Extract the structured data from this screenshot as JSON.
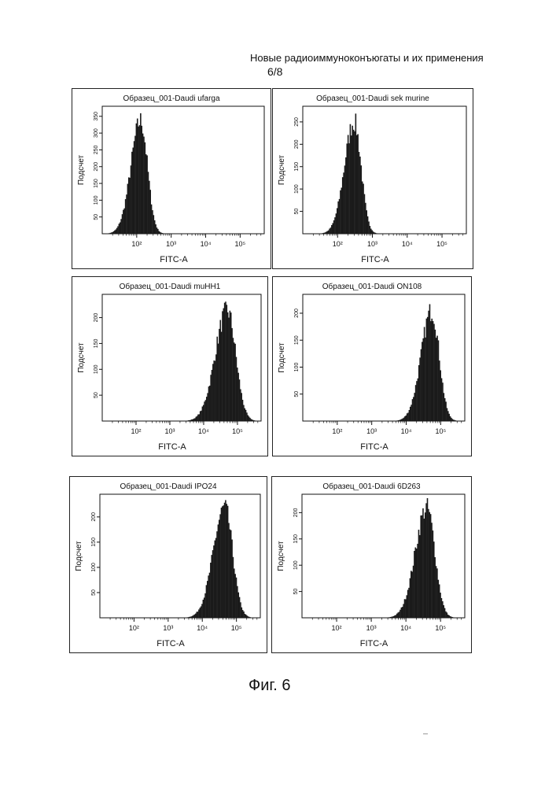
{
  "header": {
    "title": "Новые радиоиммуноконъюгаты и их применения",
    "page_number": "6/8"
  },
  "figure_caption": "Фиг. 6",
  "colors": {
    "ink": "#111111",
    "histogram_fill": "#1a1a1a",
    "background": "#ffffff"
  },
  "chart_data": [
    {
      "type": "histogram",
      "title": "Образец_001-Daudi ufarga",
      "xlabel": "FITC-A",
      "ylabel": "Подсчет",
      "x_scale": "log",
      "xlim": [
        10,
        500000
      ],
      "x_ticks": [
        100,
        1000,
        10000,
        100000
      ],
      "x_tick_labels": [
        "10²",
        "10³",
        "10⁴",
        "10⁵"
      ],
      "y_ticks": [
        50,
        100,
        150,
        200,
        250,
        300,
        350
      ],
      "ylim": [
        0,
        380
      ],
      "peak_x": 130,
      "peak_count": 370,
      "width_decades": 0.22
    },
    {
      "type": "histogram",
      "title": "Образец_001-Daudi sek murine",
      "xlabel": "FITC-A",
      "ylabel": "Подсчет",
      "x_scale": "log",
      "xlim": [
        10,
        500000
      ],
      "x_ticks": [
        100,
        1000,
        10000,
        100000
      ],
      "x_tick_labels": [
        "10²",
        "10³",
        "10⁴",
        "10⁵"
      ],
      "y_ticks": [
        50,
        100,
        150,
        200,
        250
      ],
      "ylim": [
        0,
        285
      ],
      "peak_x": 300,
      "peak_count": 275,
      "width_decades": 0.22
    },
    {
      "type": "histogram",
      "title": "Образец_001-Daudi muHH1",
      "xlabel": "FITC-A",
      "ylabel": "Подсчет",
      "x_scale": "log",
      "xlim": [
        10,
        500000
      ],
      "x_ticks": [
        100,
        1000,
        10000,
        100000
      ],
      "x_tick_labels": [
        "10²",
        "10³",
        "10⁴",
        "10⁵"
      ],
      "y_ticks": [
        50,
        100,
        150,
        200
      ],
      "ylim": [
        0,
        245
      ],
      "peak_x": 50000,
      "peak_count": 235,
      "width_decades": 0.28
    },
    {
      "type": "histogram",
      "title": "Образец_001-Daudi ON108",
      "xlabel": "FITC-A",
      "ylabel": "Подсчет",
      "x_scale": "log",
      "xlim": [
        10,
        500000
      ],
      "x_ticks": [
        100,
        1000,
        10000,
        100000
      ],
      "x_tick_labels": [
        "10²",
        "10³",
        "10⁴",
        "10⁵"
      ],
      "y_ticks": [
        50,
        100,
        150,
        200
      ],
      "ylim": [
        0,
        235
      ],
      "peak_x": 55000,
      "peak_count": 225,
      "width_decades": 0.24
    },
    {
      "type": "histogram",
      "title": "Образец_001-Daudi IPO24",
      "xlabel": "FITC-A",
      "ylabel": "Подсчет",
      "x_scale": "log",
      "xlim": [
        10,
        500000
      ],
      "x_ticks": [
        100,
        1000,
        10000,
        100000
      ],
      "x_tick_labels": [
        "10²",
        "10³",
        "10⁴",
        "10⁵"
      ],
      "y_ticks": [
        50,
        100,
        150,
        200
      ],
      "ylim": [
        0,
        245
      ],
      "peak_x": 45000,
      "peak_count": 240,
      "width_decades": 0.26
    },
    {
      "type": "histogram",
      "title": "Образец_001-Daudi 6D263",
      "xlabel": "FITC-A",
      "ylabel": "Подсчет",
      "x_scale": "log",
      "xlim": [
        10,
        500000
      ],
      "x_ticks": [
        100,
        1000,
        10000,
        100000
      ],
      "x_tick_labels": [
        "10²",
        "10³",
        "10⁴",
        "10⁵"
      ],
      "y_ticks": [
        50,
        100,
        150,
        200
      ],
      "ylim": [
        0,
        235
      ],
      "peak_x": 40000,
      "peak_count": 230,
      "width_decades": 0.26
    }
  ]
}
